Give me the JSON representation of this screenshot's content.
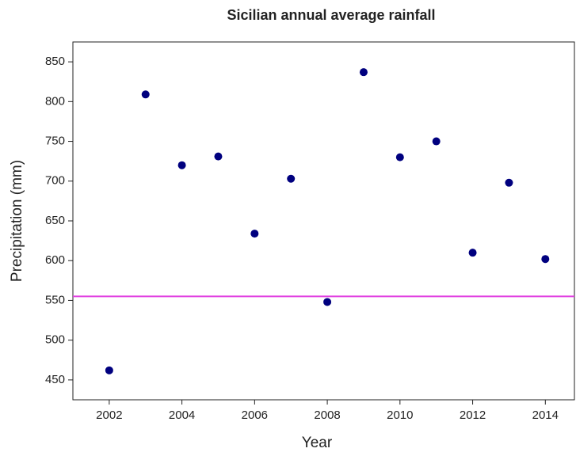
{
  "chart_data": {
    "type": "scatter",
    "title": "Sicilian annual average rainfall",
    "x_label": "Year",
    "y_label": "Precipitation (mm)",
    "x": [
      2002,
      2003,
      2004,
      2005,
      2006,
      2007,
      2008,
      2009,
      2010,
      2011,
      2012,
      2013,
      2014
    ],
    "values": [
      462,
      809,
      720,
      731,
      634,
      703,
      548,
      837,
      730,
      750,
      610,
      698,
      602
    ],
    "color": "#00007f",
    "reference_line": {
      "value": 555,
      "color": "#e040e0"
    },
    "xlim": [
      2001,
      2014.8
    ],
    "xticks": [
      2002,
      2004,
      2006,
      2008,
      2010,
      2012,
      2014
    ],
    "ylim": [
      425,
      875
    ],
    "yticks": [
      450,
      500,
      550,
      600,
      650,
      700,
      750,
      800,
      850
    ]
  }
}
